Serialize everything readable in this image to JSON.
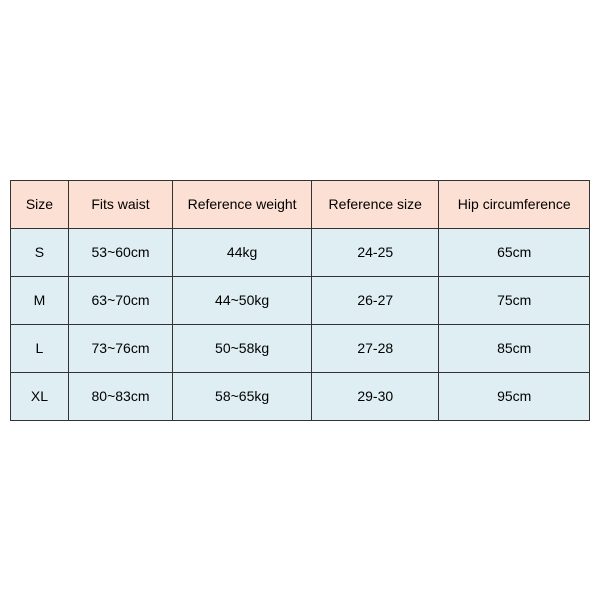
{
  "table": {
    "header_bg": "#fbe0d3",
    "row_bg": "#dfeef3",
    "border_color": "#333333",
    "font_size": 14,
    "columns": [
      {
        "key": "size",
        "label": "Size",
        "width_pct": 10
      },
      {
        "key": "waist",
        "label": "Fits waist",
        "width_pct": 18
      },
      {
        "key": "weight",
        "label": "Reference weight",
        "width_pct": 24
      },
      {
        "key": "refsize",
        "label": "Reference size",
        "width_pct": 22
      },
      {
        "key": "hip",
        "label": "Hip circumference",
        "width_pct": 26
      }
    ],
    "rows": [
      {
        "size": "S",
        "waist": "53~60cm",
        "weight": "44kg",
        "refsize": "24-25",
        "hip": "65cm"
      },
      {
        "size": "M",
        "waist": "63~70cm",
        "weight": "44~50kg",
        "refsize": "26-27",
        "hip": "75cm"
      },
      {
        "size": "L",
        "waist": "73~76cm",
        "weight": "50~58kg",
        "refsize": "27-28",
        "hip": "85cm"
      },
      {
        "size": "XL",
        "waist": "80~83cm",
        "weight": "58~65kg",
        "refsize": "29-30",
        "hip": "95cm"
      }
    ]
  }
}
